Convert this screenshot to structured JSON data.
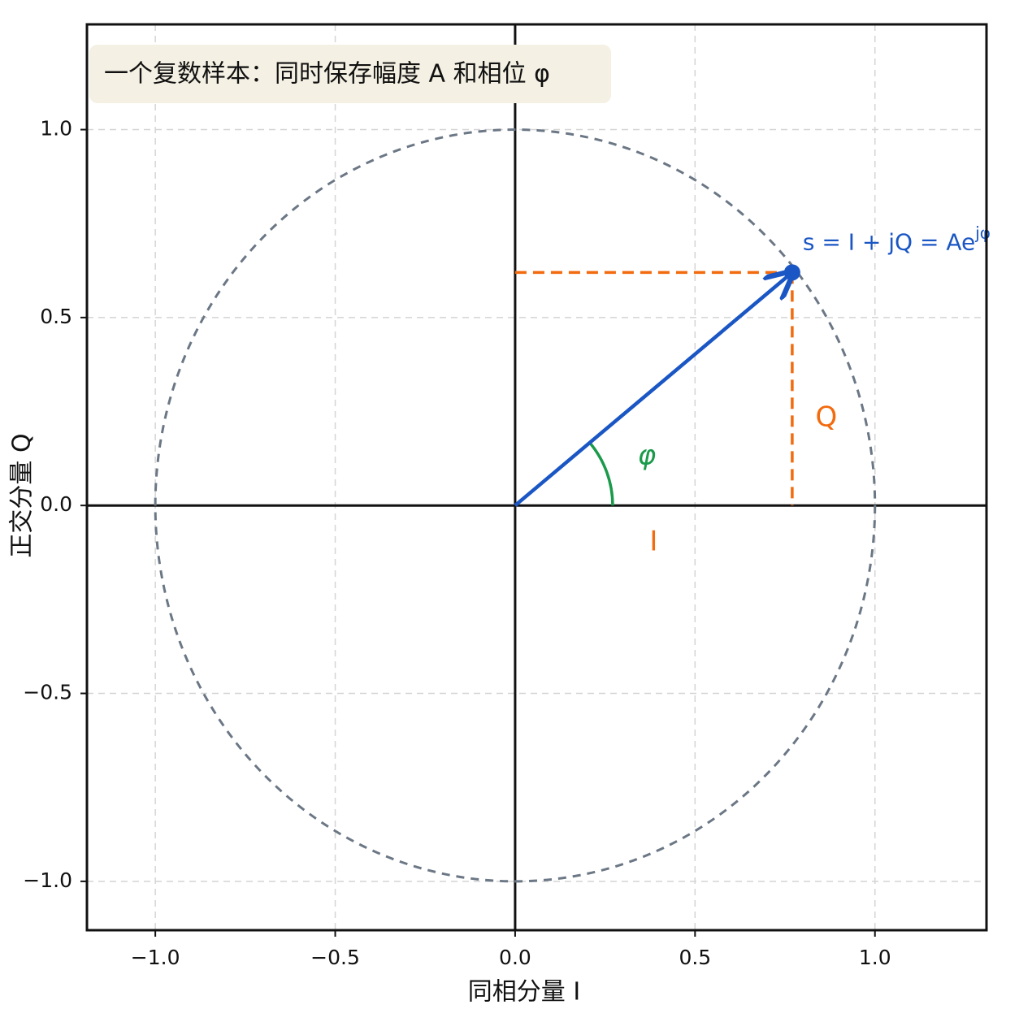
{
  "chart_data": {
    "type": "phasor",
    "title": "一个复数样本：同时保存幅度 A 和相位 φ",
    "xlabel": "同相分量 I",
    "ylabel": "正交分量 Q",
    "xlim": [
      -1.19,
      1.31
    ],
    "ylim": [
      -1.13,
      1.28
    ],
    "xticks": [
      {
        "value": -1.0,
        "label": "−1.0"
      },
      {
        "value": -0.5,
        "label": "−0.5"
      },
      {
        "value": 0.0,
        "label": "0.0"
      },
      {
        "value": 0.5,
        "label": "0.5"
      },
      {
        "value": 1.0,
        "label": "1.0"
      }
    ],
    "yticks": [
      {
        "value": -1.0,
        "label": "−1.0"
      },
      {
        "value": -0.5,
        "label": "−0.5"
      },
      {
        "value": 0.0,
        "label": "0.0"
      },
      {
        "value": 0.5,
        "label": "0.5"
      },
      {
        "value": 1.0,
        "label": "1.0"
      }
    ],
    "grid": true,
    "circle_radius": 1,
    "circle_color": "#6b7785",
    "point": {
      "x": 0.77,
      "y": 0.62,
      "color": "#1a56c4",
      "label": "s = I + jQ = Ae",
      "label_superscript": "jφ"
    },
    "projection_color": "#f26b0f",
    "angle_color": "#1a9a4a",
    "annotations": {
      "angle": "φ",
      "in_phase": "I",
      "quadrature": "Q"
    }
  }
}
